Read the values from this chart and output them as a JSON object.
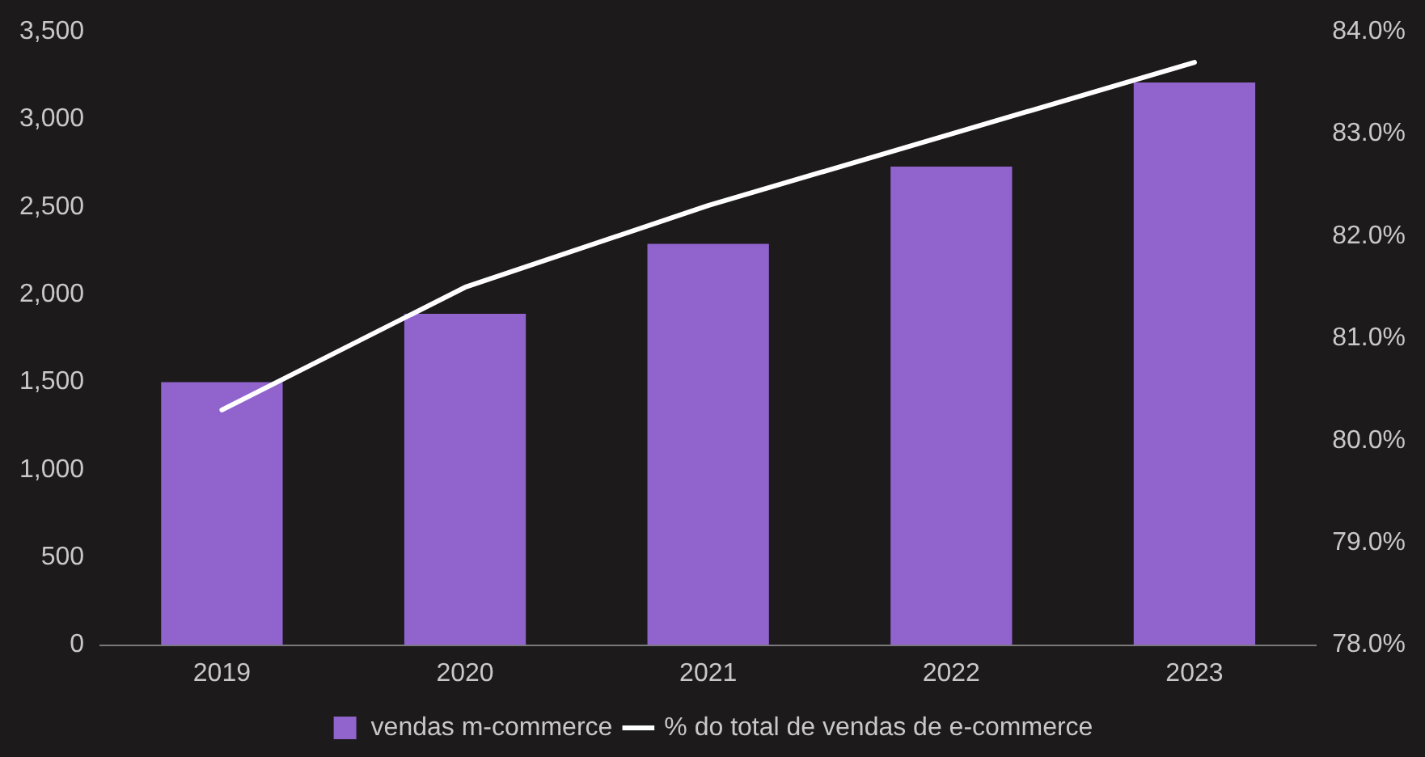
{
  "chart_data": {
    "type": "bar",
    "categories": [
      "2019",
      "2020",
      "2021",
      "2022",
      "2023"
    ],
    "series": [
      {
        "name": "vendas m-commerce",
        "color": "#9063cd",
        "values": [
          1500,
          1890,
          2290,
          2730,
          3210
        ]
      },
      {
        "name": "% do total de vendas de e-commerce",
        "type": "line",
        "axis": "y2",
        "color": "#ffffff",
        "values": [
          80.3,
          81.5,
          82.3,
          83.0,
          83.7
        ]
      }
    ],
    "ylim": [
      0,
      3500
    ],
    "yticks": [
      0,
      500,
      {
        "value": 1000,
        "label": "1,000"
      },
      {
        "value": 1500,
        "label": "1,500"
      },
      {
        "value": 2000,
        "label": "2,000"
      },
      {
        "value": 2500,
        "label": "2,500"
      },
      {
        "value": 3000,
        "label": "3,000"
      },
      {
        "value": 3500,
        "label": "3,500"
      }
    ],
    "y2lim": [
      78,
      84
    ],
    "y2ticks": [
      {
        "value": 78,
        "label": "78.0%"
      },
      {
        "value": 79,
        "label": "79.0%"
      },
      {
        "value": 80,
        "label": "80.0%"
      },
      {
        "value": 81,
        "label": "81.0%"
      },
      {
        "value": 82,
        "label": "82.0%"
      },
      {
        "value": 83,
        "label": "83.0%"
      },
      {
        "value": 84,
        "label": "84.0%"
      }
    ],
    "grid": false,
    "legend": "bottom",
    "marker": "none",
    "line_style": "solid"
  }
}
